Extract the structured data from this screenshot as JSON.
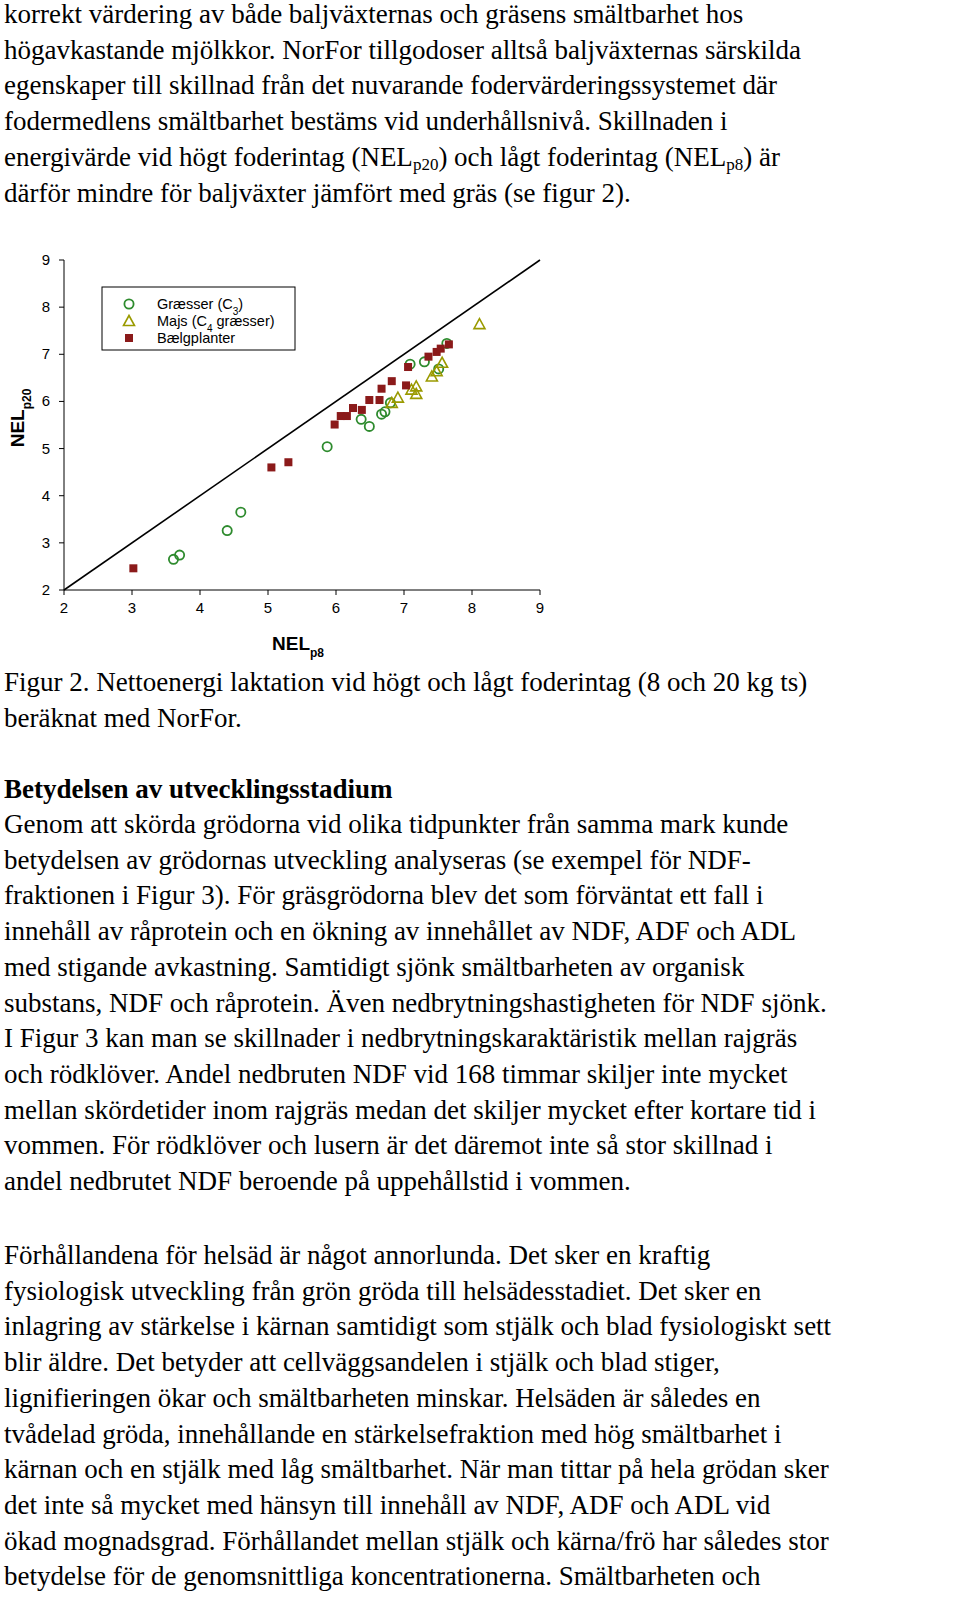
{
  "paragraph_1": {
    "lines": [
      "korrekt värdering av både baljväxternas och gräsens smältbarhet hos",
      "högavkastande mjölkkor. NorFor tillgodoser alltså baljväxternas särskilda",
      "egenskaper till skillnad från det nuvarande fodervärderingssystemet där",
      "fodermedlens smältbarhet bestäms vid underhållsnivå. Skillnaden i",
      [
        "energivärde vid högt foderintag (NEL",
        {
          "sub": "p20"
        },
        ") och lågt foderintag (NEL",
        {
          "sub": "p8"
        },
        ") är"
      ],
      "därför mindre för baljväxter jämfört med gräs (se figur 2)."
    ]
  },
  "chart_data": {
    "type": "scatter",
    "x_label": [
      "NEL",
      {
        "sub": "p8"
      }
    ],
    "y_label": [
      "NEL",
      {
        "sub": "p20"
      }
    ],
    "xlim": [
      2,
      9
    ],
    "ylim": [
      2,
      9
    ],
    "xticks": [
      2,
      3,
      4,
      5,
      6,
      7,
      8,
      9
    ],
    "yticks": [
      2,
      3,
      4,
      5,
      6,
      7,
      8,
      9
    ],
    "grid": false,
    "legend": "top-left",
    "series": [
      {
        "name": "Græsser (C3)",
        "color": "#2e8b2e",
        "marker": "circle",
        "x": [
          3.61,
          3.7,
          4.4,
          4.6,
          5.87,
          6.37,
          6.49,
          6.67,
          6.72,
          6.8,
          7.09,
          7.3,
          7.51,
          7.63
        ],
        "values": [
          2.65,
          2.74,
          3.26,
          3.65,
          5.04,
          5.62,
          5.47,
          5.73,
          5.78,
          5.97,
          6.79,
          6.84,
          6.69,
          7.23
        ]
      },
      {
        "name": "Majs (C4 græsser)",
        "color": "#9a9a00",
        "marker": "triangle",
        "x": [
          8.11,
          7.56,
          7.48,
          7.41,
          7.18,
          7.11,
          7.18,
          6.91,
          6.82
        ],
        "values": [
          7.64,
          6.82,
          6.64,
          6.53,
          6.32,
          6.25,
          6.16,
          6.08,
          5.97
        ]
      },
      {
        "name": "Bælgplanter",
        "color": "#8b1a1a",
        "marker": "square",
        "x": [
          3.02,
          5.05,
          5.3,
          5.98,
          6.07,
          6.16,
          6.25,
          6.38,
          6.49,
          6.64,
          6.67,
          6.82,
          7.03,
          7.06,
          7.36,
          7.48,
          7.54,
          7.66
        ],
        "values": [
          2.46,
          4.6,
          4.71,
          5.51,
          5.69,
          5.69,
          5.86,
          5.82,
          6.03,
          6.03,
          6.27,
          6.43,
          6.34,
          6.73,
          6.95,
          7.05,
          7.12,
          7.21
        ]
      }
    ]
  },
  "caption": {
    "lines": [
      "Figur 2. Nettoenergi laktation vid högt och lågt foderintag (8 och 20 kg ts)",
      "beräknat med NorFor."
    ]
  },
  "heading": "Betydelsen av utvecklingsstadium",
  "paragraph_2": {
    "lines": [
      "Genom att skörda grödorna vid olika tidpunkter från samma mark kunde",
      "betydelsen av grödornas utveckling analyseras (se exempel för NDF-",
      "fraktionen i Figur 3). För gräsgrödorna blev det som förväntat ett fall i",
      "innehåll av råprotein och en ökning av innehållet av NDF, ADF och ADL",
      "med stigande avkastning. Samtidigt sjönk smältbarheten av organisk",
      "substans, NDF och råprotein. Även nedbrytningshastigheten för NDF sjönk.",
      "I Figur 3 kan man se skillnader i nedbrytningskaraktäristik mellan rajgräs",
      "och rödklöver. Andel nedbruten NDF vid 168 timmar skiljer inte mycket",
      "mellan skördetider inom rajgräs medan det skiljer mycket efter kortare tid i",
      "vommen. För rödklöver och lusern är det däremot inte så stor skillnad i",
      "andel nedbrutet NDF beroende på uppehållstid i vommen."
    ]
  },
  "paragraph_3": {
    "lines": [
      "Förhållandena för helsäd är något annorlunda. Det sker en kraftig",
      "fysiologisk utveckling från grön gröda till helsädesstadiet. Det sker en",
      "inlagring av stärkelse i kärnan samtidigt som stjälk och blad fysiologiskt sett",
      "blir äldre. Det betyder att cellväggsandelen i stjälk och blad stiger,",
      "lignifieringen ökar och smältbarheten minskar. Helsäden är således en",
      "tvådelad gröda, innehållande en stärkelsefraktion med hög smältbarhet i",
      "kärnan och en stjälk med låg smältbarhet. När man tittar på hela grödan sker",
      "det inte så mycket med hänsyn till innehåll av NDF, ADF och ADL vid",
      "ökad mognadsgrad. Förhållandet mellan stjälk och kärna/frö har således stor",
      "betydelse för de genomsnittliga koncentrationerna. Smältbarheten och"
    ]
  }
}
